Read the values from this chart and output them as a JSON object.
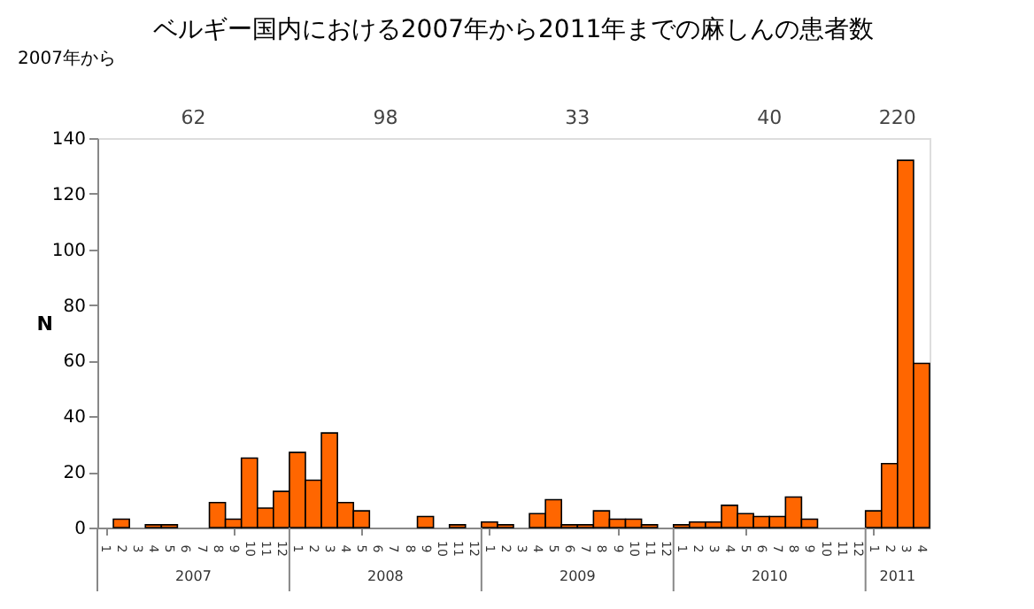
{
  "chart_data": {
    "type": "bar",
    "title": "ベルギー国内における2007年から2011年までの麻しんの患者数",
    "ylabel": "N",
    "categories": [
      "1",
      "2",
      "3",
      "4",
      "5",
      "6",
      "7",
      "8",
      "9",
      "10",
      "11",
      "12",
      "1",
      "2",
      "3",
      "4",
      "5",
      "6",
      "7",
      "8",
      "9",
      "10",
      "11",
      "12",
      "1",
      "2",
      "3",
      "4",
      "5",
      "6",
      "7",
      "8",
      "9",
      "10",
      "11",
      "12",
      "1",
      "2",
      "3",
      "4",
      "5",
      "6",
      "7",
      "8",
      "9",
      "10",
      "11",
      "12",
      "1",
      "2",
      "3",
      "4"
    ],
    "values": [
      0,
      3,
      0,
      1,
      1,
      0,
      0,
      9,
      3,
      25,
      7,
      13,
      27,
      17,
      34,
      9,
      6,
      0,
      0,
      0,
      4,
      0,
      1,
      0,
      2,
      1,
      0,
      5,
      10,
      1,
      1,
      6,
      3,
      3,
      1,
      0,
      1,
      2,
      2,
      8,
      5,
      4,
      4,
      11,
      3,
      0,
      0,
      0,
      6,
      23,
      132,
      59
    ],
    "color": "#ff6600",
    "ylim": [
      0,
      140
    ],
    "yticks": [
      0,
      20,
      40,
      60,
      80,
      100,
      120,
      140
    ],
    "grid": false,
    "annotations": [
      "62",
      "98",
      "33",
      "40",
      "220",
      "2007",
      "2008",
      "2009",
      "2010",
      "2011",
      "2007年から"
    ]
  }
}
